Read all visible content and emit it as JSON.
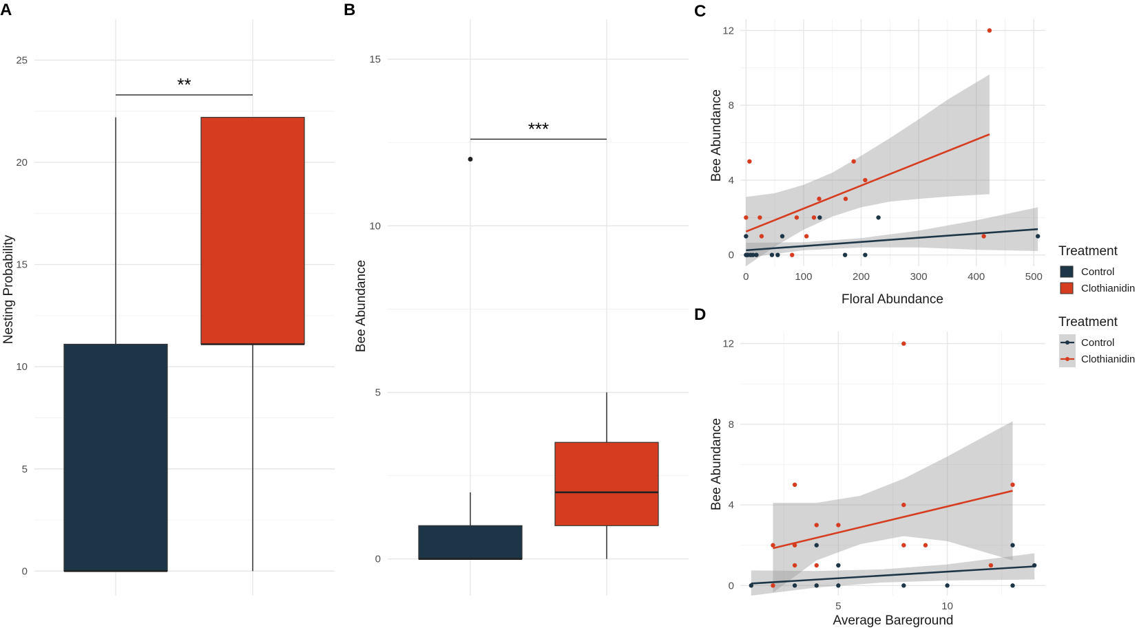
{
  "colors": {
    "control": "#1c3547",
    "clothianidin": "#d63d20",
    "ribbon": "#999999"
  },
  "chart_data": [
    {
      "panel": "A",
      "type": "box",
      "ylabel": "Nesting Probability",
      "ylim": [
        -1.2,
        27
      ],
      "yticks": [
        0,
        5,
        10,
        15,
        20,
        25
      ],
      "groups": [
        {
          "name": "Control",
          "min": 0,
          "q1": 0,
          "median": 0,
          "q3": 11.1,
          "max": 22.2
        },
        {
          "name": "Clothianidin",
          "min": 0,
          "q1": 11.1,
          "median": 11.1,
          "q3": 22.2,
          "max": 22.2
        }
      ],
      "significance": "**",
      "bracket_y": 23.3
    },
    {
      "panel": "B",
      "type": "box",
      "ylabel": "Bee Abundance",
      "ylim": [
        -1.1,
        16.2
      ],
      "yticks": [
        0,
        5,
        10,
        15
      ],
      "groups": [
        {
          "name": "Control",
          "min": 0,
          "q1": 0,
          "median": 0,
          "q3": 1,
          "max": 2,
          "outliers": [
            12
          ]
        },
        {
          "name": "Clothianidin",
          "min": 0,
          "q1": 1,
          "median": 2,
          "q3": 3.5,
          "max": 5
        }
      ],
      "significance": "***",
      "bracket_y": 12.6
    },
    {
      "panel": "C",
      "type": "scatter",
      "xlabel": "Floral Abundance",
      "ylabel": "Bee Abundance",
      "xlim": [
        -10,
        520
      ],
      "ylim": [
        -0.6,
        12.6
      ],
      "xticks": [
        0,
        100,
        200,
        300,
        400,
        500
      ],
      "yticks": [
        0,
        4,
        8,
        12
      ],
      "legend_title": "Treatment",
      "legend_style": "fill",
      "series": [
        {
          "name": "Control",
          "points": [
            [
              0,
              1
            ],
            [
              0,
              0
            ],
            [
              3,
              0
            ],
            [
              8,
              0
            ],
            [
              12,
              0
            ],
            [
              18,
              0
            ],
            [
              45,
              0
            ],
            [
              55,
              0
            ],
            [
              63,
              1
            ],
            [
              128,
              2
            ],
            [
              172,
              0
            ],
            [
              207,
              0
            ],
            [
              230,
              2
            ],
            [
              507,
              1
            ]
          ],
          "fit": {
            "x": [
              0,
              507
            ],
            "y": [
              0.25,
              1.38
            ]
          },
          "band_upper": [
            [
              0,
              0.65
            ],
            [
              100,
              0.68
            ],
            [
              200,
              0.9
            ],
            [
              300,
              1.3
            ],
            [
              400,
              1.85
            ],
            [
              507,
              2.55
            ]
          ],
          "band_lower": [
            [
              0,
              -0.15
            ],
            [
              100,
              0.25
            ],
            [
              200,
              0.4
            ],
            [
              300,
              0.4
            ],
            [
              400,
              0.28
            ],
            [
              507,
              0.21
            ]
          ]
        },
        {
          "name": "Clothianidin",
          "points": [
            [
              0,
              2
            ],
            [
              6,
              5
            ],
            [
              24,
              2
            ],
            [
              27,
              1
            ],
            [
              80,
              0
            ],
            [
              88,
              2
            ],
            [
              105,
              1
            ],
            [
              118,
              2
            ],
            [
              127,
              3
            ],
            [
              173,
              3
            ],
            [
              187,
              5
            ],
            [
              207,
              4
            ],
            [
              413,
              1
            ],
            [
              423,
              12
            ]
          ],
          "fit": {
            "x": [
              0,
              423
            ],
            "y": [
              1.25,
              6.45
            ]
          },
          "band_upper": [
            [
              0,
              3.1
            ],
            [
              50,
              3.3
            ],
            [
              100,
              3.75
            ],
            [
              150,
              4.4
            ],
            [
              200,
              5.3
            ],
            [
              250,
              6.25
            ],
            [
              300,
              7.25
            ],
            [
              350,
              8.3
            ],
            [
              423,
              9.65
            ]
          ],
          "band_lower": [
            [
              0,
              -0.6
            ],
            [
              50,
              0.45
            ],
            [
              100,
              1.35
            ],
            [
              150,
              2.05
            ],
            [
              200,
              2.55
            ],
            [
              250,
              2.85
            ],
            [
              300,
              3.0
            ],
            [
              350,
              3.12
            ],
            [
              423,
              3.25
            ]
          ]
        }
      ]
    },
    {
      "panel": "D",
      "type": "scatter",
      "xlabel": "Average Bareground",
      "ylabel": "Bee Abundance",
      "xlim": [
        0.5,
        14.5
      ],
      "ylim": [
        -0.5,
        12.6
      ],
      "xticks": [
        5,
        10
      ],
      "yticks": [
        0,
        4,
        8,
        12
      ],
      "legend_title": "Treatment",
      "legend_style": "line",
      "series": [
        {
          "name": "Control",
          "points": [
            [
              1,
              0
            ],
            [
              3,
              0
            ],
            [
              4,
              2
            ],
            [
              4,
              0
            ],
            [
              5,
              1
            ],
            [
              5,
              0
            ],
            [
              8,
              0
            ],
            [
              10,
              0
            ],
            [
              13,
              2
            ],
            [
              13,
              0
            ],
            [
              14,
              1
            ]
          ],
          "fit": {
            "x": [
              1,
              14
            ],
            "y": [
              0.1,
              0.95
            ]
          },
          "band_upper": [
            [
              1,
              0.75
            ],
            [
              4,
              0.72
            ],
            [
              7,
              0.8
            ],
            [
              10,
              1.05
            ],
            [
              14,
              1.6
            ]
          ],
          "band_lower": [
            [
              1,
              -0.5
            ],
            [
              4,
              -0.1
            ],
            [
              7,
              0.15
            ],
            [
              10,
              0.25
            ],
            [
              14,
              0.3
            ]
          ]
        },
        {
          "name": "Clothianidin",
          "points": [
            [
              2,
              2
            ],
            [
              2,
              0
            ],
            [
              3,
              5
            ],
            [
              3,
              2
            ],
            [
              3,
              1
            ],
            [
              4,
              3
            ],
            [
              4,
              1
            ],
            [
              5,
              3
            ],
            [
              8,
              12
            ],
            [
              8,
              4
            ],
            [
              8,
              2
            ],
            [
              9,
              2
            ],
            [
              12,
              1
            ],
            [
              13,
              5
            ]
          ],
          "fit": {
            "x": [
              2,
              13
            ],
            "y": [
              1.85,
              4.7
            ]
          },
          "band_upper": [
            [
              2,
              4.1
            ],
            [
              4,
              4.1
            ],
            [
              6,
              4.45
            ],
            [
              8,
              5.3
            ],
            [
              10,
              6.4
            ],
            [
              13,
              8.15
            ]
          ],
          "band_lower": [
            [
              2,
              -0.35
            ],
            [
              4,
              1.25
            ],
            [
              6,
              2.05
            ],
            [
              8,
              2.45
            ],
            [
              10,
              2.2
            ],
            [
              13,
              1.25
            ]
          ]
        }
      ]
    }
  ]
}
